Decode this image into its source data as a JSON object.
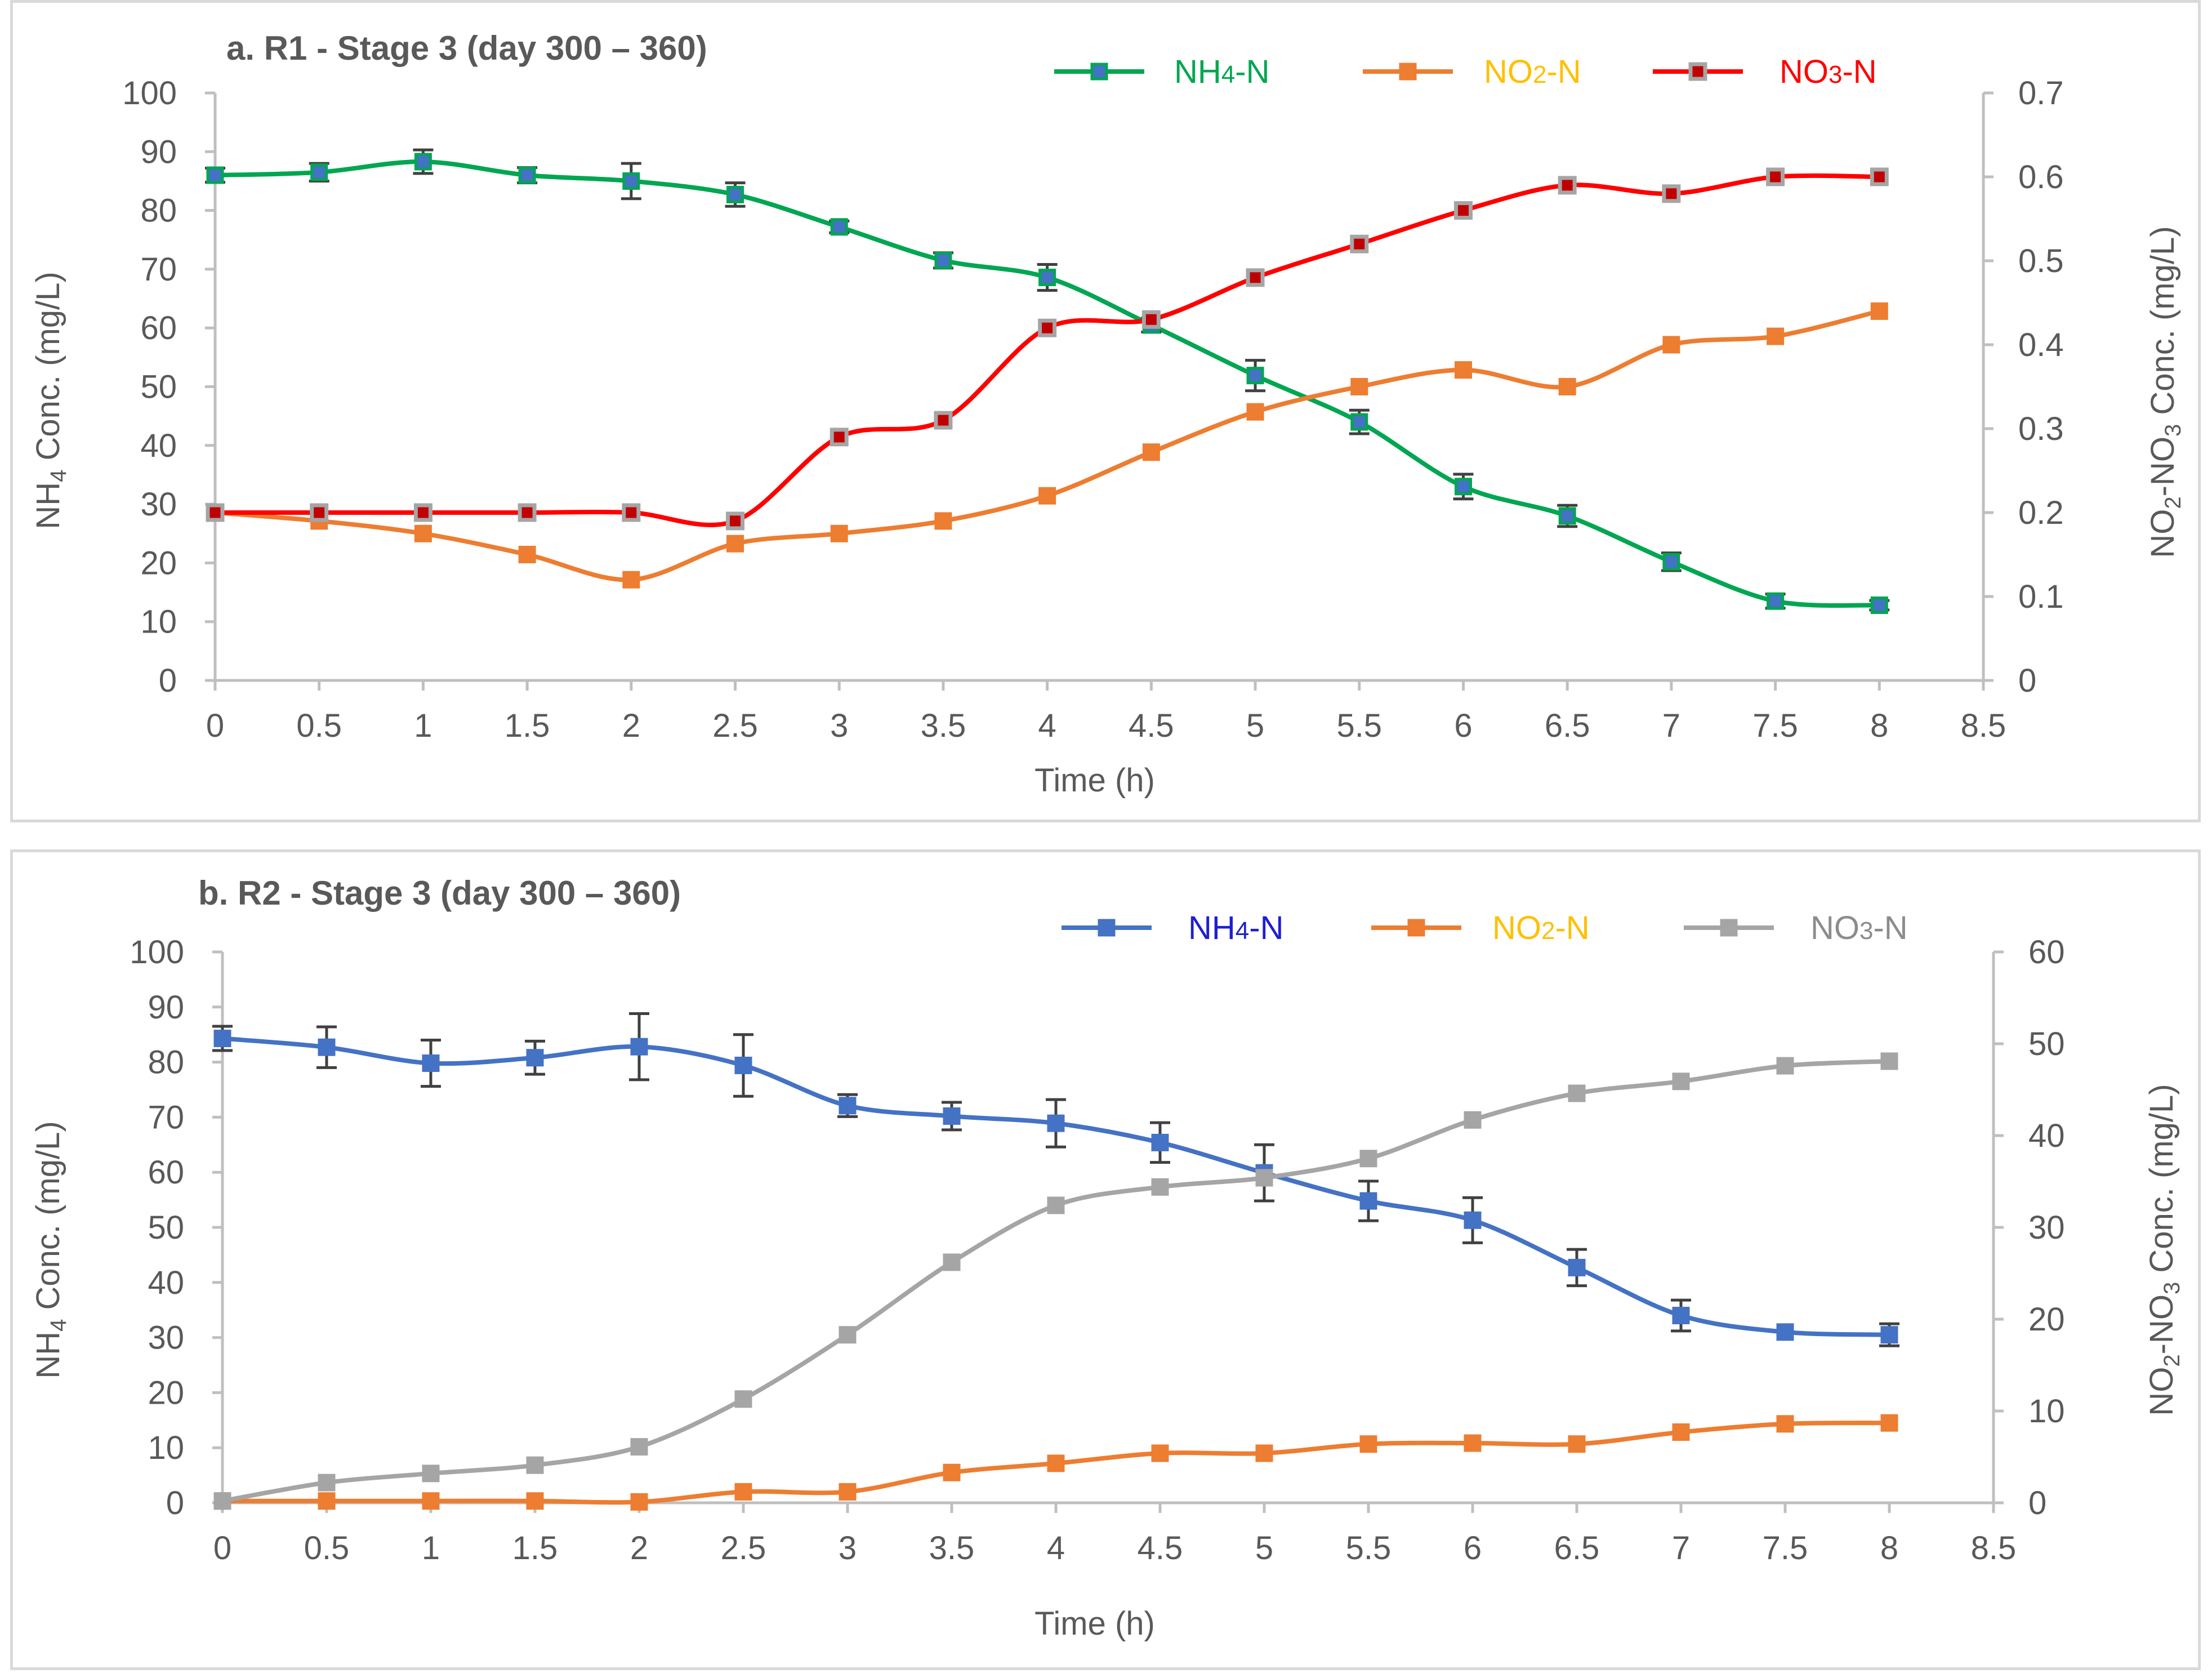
{
  "chart_data": [
    {
      "type": "line",
      "title": "a. R1 - Stage 3 (day 300 – 360)",
      "xlabel": "Time (h)",
      "ylabel_left": {
        "main": "NH",
        "sub": "4",
        "rest": " Conc. (mg/L)"
      },
      "ylabel_right": {
        "a": "NO",
        "asub": "2",
        "b": "-NO",
        "bsub": "3",
        "rest": " Conc. (mg/L)"
      },
      "xlim": [
        0,
        8.5
      ],
      "x_ticks": [
        "0",
        "0.5",
        "1",
        "1.5",
        "2",
        "2.5",
        "3",
        "3.5",
        "4",
        "4.5",
        "5",
        "5.5",
        "6",
        "6.5",
        "7",
        "7.5",
        "8",
        "8.5"
      ],
      "ylim_left": [
        0,
        100
      ],
      "y_ticks_left": [
        "0",
        "10",
        "20",
        "30",
        "40",
        "50",
        "60",
        "70",
        "80",
        "90",
        "100"
      ],
      "ylim_right": [
        0,
        0.7
      ],
      "y_ticks_right": [
        "0",
        "0.1",
        "0.2",
        "0.3",
        "0.4",
        "0.5",
        "0.6",
        "0.7"
      ],
      "x": [
        0,
        0.5,
        1,
        1.5,
        2,
        2.5,
        3,
        3.5,
        4,
        4.5,
        5,
        5.5,
        6,
        6.5,
        7,
        7.5,
        8
      ],
      "series": [
        {
          "name": "NH4-N",
          "label": "NH",
          "label_sub": "4",
          "label_rest": "-N",
          "axis": "left",
          "color": "#00a651",
          "marker_color": "#4472c4",
          "label_color": "#00a651",
          "values": [
            86,
            86.5,
            88.3,
            86,
            85,
            82.7,
            77.2,
            71.5,
            68.6,
            60.5,
            51.9,
            44,
            33,
            28,
            20.2,
            13.5,
            12.8
          ],
          "errors": [
            1.2,
            1.5,
            2.0,
            1.3,
            3.0,
            2.0,
            1.0,
            1.3,
            2.2,
            1.2,
            2.6,
            2.0,
            2.1,
            1.8,
            1.5,
            1.2,
            0.8
          ]
        },
        {
          "name": "NO2-N",
          "label": "NO",
          "label_sub": "2",
          "label_rest": "-N",
          "axis": "right",
          "color": "#ed7d31",
          "marker_color": "#ed7d31",
          "label_color": "#ffc000",
          "values": [
            0.2,
            0.19,
            0.175,
            0.15,
            0.12,
            0.163,
            0.175,
            0.19,
            0.22,
            0.272,
            0.32,
            0.35,
            0.37,
            0.35,
            0.4,
            0.41,
            0.44
          ],
          "errors": []
        },
        {
          "name": "NO3-N",
          "label": "NO",
          "label_sub": "3",
          "label_rest": "-N",
          "axis": "right",
          "color": "#ff0000",
          "marker_color": "#c00000",
          "marker_border": "#a5a5a5",
          "label_color": "#ff0000",
          "values": [
            0.2,
            0.2,
            0.2,
            0.2,
            0.2,
            0.19,
            0.29,
            0.31,
            0.42,
            0.43,
            0.48,
            0.52,
            0.56,
            0.59,
            0.58,
            0.6,
            0.6
          ],
          "errors": []
        }
      ]
    },
    {
      "type": "line",
      "title": "b. R2 - Stage 3 (day 300 – 360)",
      "xlabel": "Time (h)",
      "ylabel_left": {
        "main": "NH",
        "sub": "4",
        "rest": " Conc. (mg/L)"
      },
      "ylabel_right": {
        "a": "NO",
        "asub": "2",
        "b": "-NO",
        "bsub": "3",
        "rest": " Conc. (mg/L)"
      },
      "xlim": [
        0,
        8.5
      ],
      "x_ticks": [
        "0",
        "0.5",
        "1",
        "1.5",
        "2",
        "2.5",
        "3",
        "3.5",
        "4",
        "4.5",
        "5",
        "5.5",
        "6",
        "6.5",
        "7",
        "7.5",
        "8",
        "8.5"
      ],
      "ylim_left": [
        0,
        100
      ],
      "y_ticks_left": [
        "0",
        "10",
        "20",
        "30",
        "40",
        "50",
        "60",
        "70",
        "80",
        "90",
        "100"
      ],
      "ylim_right": [
        0,
        60
      ],
      "y_ticks_right": [
        "0",
        "10",
        "20",
        "30",
        "40",
        "50",
        "60"
      ],
      "x": [
        0,
        0.5,
        1,
        1.5,
        2,
        2.5,
        3,
        3.5,
        4,
        4.5,
        5,
        5.5,
        6,
        6.5,
        7,
        7.5,
        8
      ],
      "series": [
        {
          "name": "NH4-N",
          "label": "NH",
          "label_sub": "4",
          "label_rest": "-N",
          "axis": "left",
          "color": "#4472c4",
          "marker_color": "#4472c4",
          "label_color": "#1f1fd0",
          "values": [
            84.3,
            82.7,
            79.8,
            80.8,
            82.8,
            79.4,
            72.1,
            70.2,
            68.9,
            65.4,
            59.9,
            54.8,
            51.3,
            42.7,
            34,
            31,
            30.5
          ],
          "errors": [
            2.2,
            3.7,
            4.2,
            3.0,
            6.0,
            5.6,
            2.0,
            2.5,
            4.3,
            3.6,
            5.1,
            3.6,
            4.1,
            3.3,
            2.8,
            0,
            2.0
          ]
        },
        {
          "name": "NO2-N",
          "label": "NO",
          "label_sub": "2",
          "label_rest": "-N",
          "axis": "right",
          "color": "#ed7d31",
          "marker_color": "#ed7d31",
          "label_color": "#ffc000",
          "values": [
            0.2,
            0.2,
            0.2,
            0.2,
            0.1,
            1.2,
            1.2,
            3.3,
            4.3,
            5.4,
            5.4,
            6.4,
            6.5,
            6.4,
            7.7,
            8.6,
            8.7
          ],
          "errors": []
        },
        {
          "name": "NO3-N",
          "label": "NO",
          "label_sub": "3",
          "label_rest": "-N",
          "axis": "right",
          "color": "#a5a5a5",
          "marker_color": "#a5a5a5",
          "label_color": "#8c8c8c",
          "values": [
            0.2,
            2.2,
            3.2,
            4.1,
            6.1,
            11.3,
            18.3,
            26.2,
            32.4,
            34.4,
            35.4,
            37.5,
            41.7,
            44.6,
            45.9,
            47.6,
            48.1
          ],
          "errors": []
        }
      ]
    }
  ]
}
